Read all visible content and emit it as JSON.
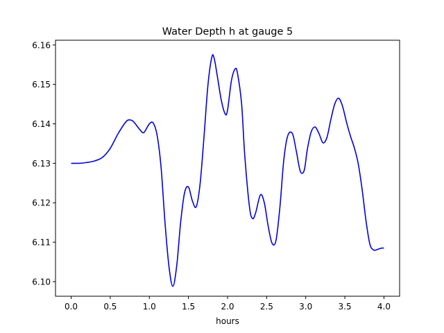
{
  "chart_data": {
    "type": "line",
    "title": "Water Depth h at gauge 5",
    "xlabel": "hours",
    "ylabel": "",
    "xlim": [
      -0.2,
      4.2
    ],
    "ylim": [
      6.0963,
      6.1612
    ],
    "xticks": [
      0.0,
      0.5,
      1.0,
      1.5,
      2.0,
      2.5,
      3.0,
      3.5,
      4.0
    ],
    "xtick_labels": [
      "0.0",
      "0.5",
      "1.0",
      "1.5",
      "2.0",
      "2.5",
      "3.0",
      "3.5",
      "4.0"
    ],
    "yticks": [
      6.1,
      6.11,
      6.12,
      6.13,
      6.14,
      6.15,
      6.16
    ],
    "ytick_labels": [
      "6.10",
      "6.11",
      "6.12",
      "6.13",
      "6.14",
      "6.15",
      "6.16"
    ],
    "grid": false,
    "series": [
      {
        "color": "#0000dd",
        "x": [
          0.0,
          0.1,
          0.2,
          0.3,
          0.4,
          0.5,
          0.6,
          0.7,
          0.75,
          0.8,
          0.88,
          0.93,
          1.0,
          1.05,
          1.1,
          1.15,
          1.2,
          1.25,
          1.3,
          1.35,
          1.4,
          1.45,
          1.5,
          1.55,
          1.6,
          1.65,
          1.7,
          1.75,
          1.8,
          1.83,
          1.87,
          1.92,
          1.97,
          2.0,
          2.05,
          2.1,
          2.13,
          2.18,
          2.22,
          2.28,
          2.32,
          2.36,
          2.42,
          2.47,
          2.52,
          2.57,
          2.62,
          2.67,
          2.72,
          2.77,
          2.83,
          2.88,
          2.93,
          2.98,
          3.02,
          3.07,
          3.12,
          3.17,
          3.22,
          3.27,
          3.32,
          3.37,
          3.42,
          3.47,
          3.52,
          3.57,
          3.62,
          3.67,
          3.72,
          3.77,
          3.82,
          3.87,
          3.92,
          3.97,
          4.0
        ],
        "y": [
          6.13,
          6.13,
          6.1302,
          6.1306,
          6.1315,
          6.1338,
          6.1375,
          6.1405,
          6.141,
          6.1405,
          6.1385,
          6.1378,
          6.14,
          6.1402,
          6.137,
          6.129,
          6.115,
          6.104,
          6.0988,
          6.104,
          6.115,
          6.1225,
          6.124,
          6.1205,
          6.119,
          6.125,
          6.137,
          6.15,
          6.157,
          6.1565,
          6.152,
          6.146,
          6.1425,
          6.1435,
          6.151,
          6.154,
          6.1525,
          6.145,
          6.132,
          6.119,
          6.116,
          6.1175,
          6.122,
          6.12,
          6.114,
          6.1097,
          6.1105,
          6.119,
          6.131,
          6.137,
          6.1375,
          6.133,
          6.128,
          6.1282,
          6.1335,
          6.138,
          6.1392,
          6.1375,
          6.1352,
          6.1365,
          6.141,
          6.145,
          6.1465,
          6.1445,
          6.1405,
          6.137,
          6.134,
          6.13,
          6.1235,
          6.1155,
          6.1095,
          6.108,
          6.1082,
          6.1085,
          6.1085
        ]
      }
    ]
  }
}
